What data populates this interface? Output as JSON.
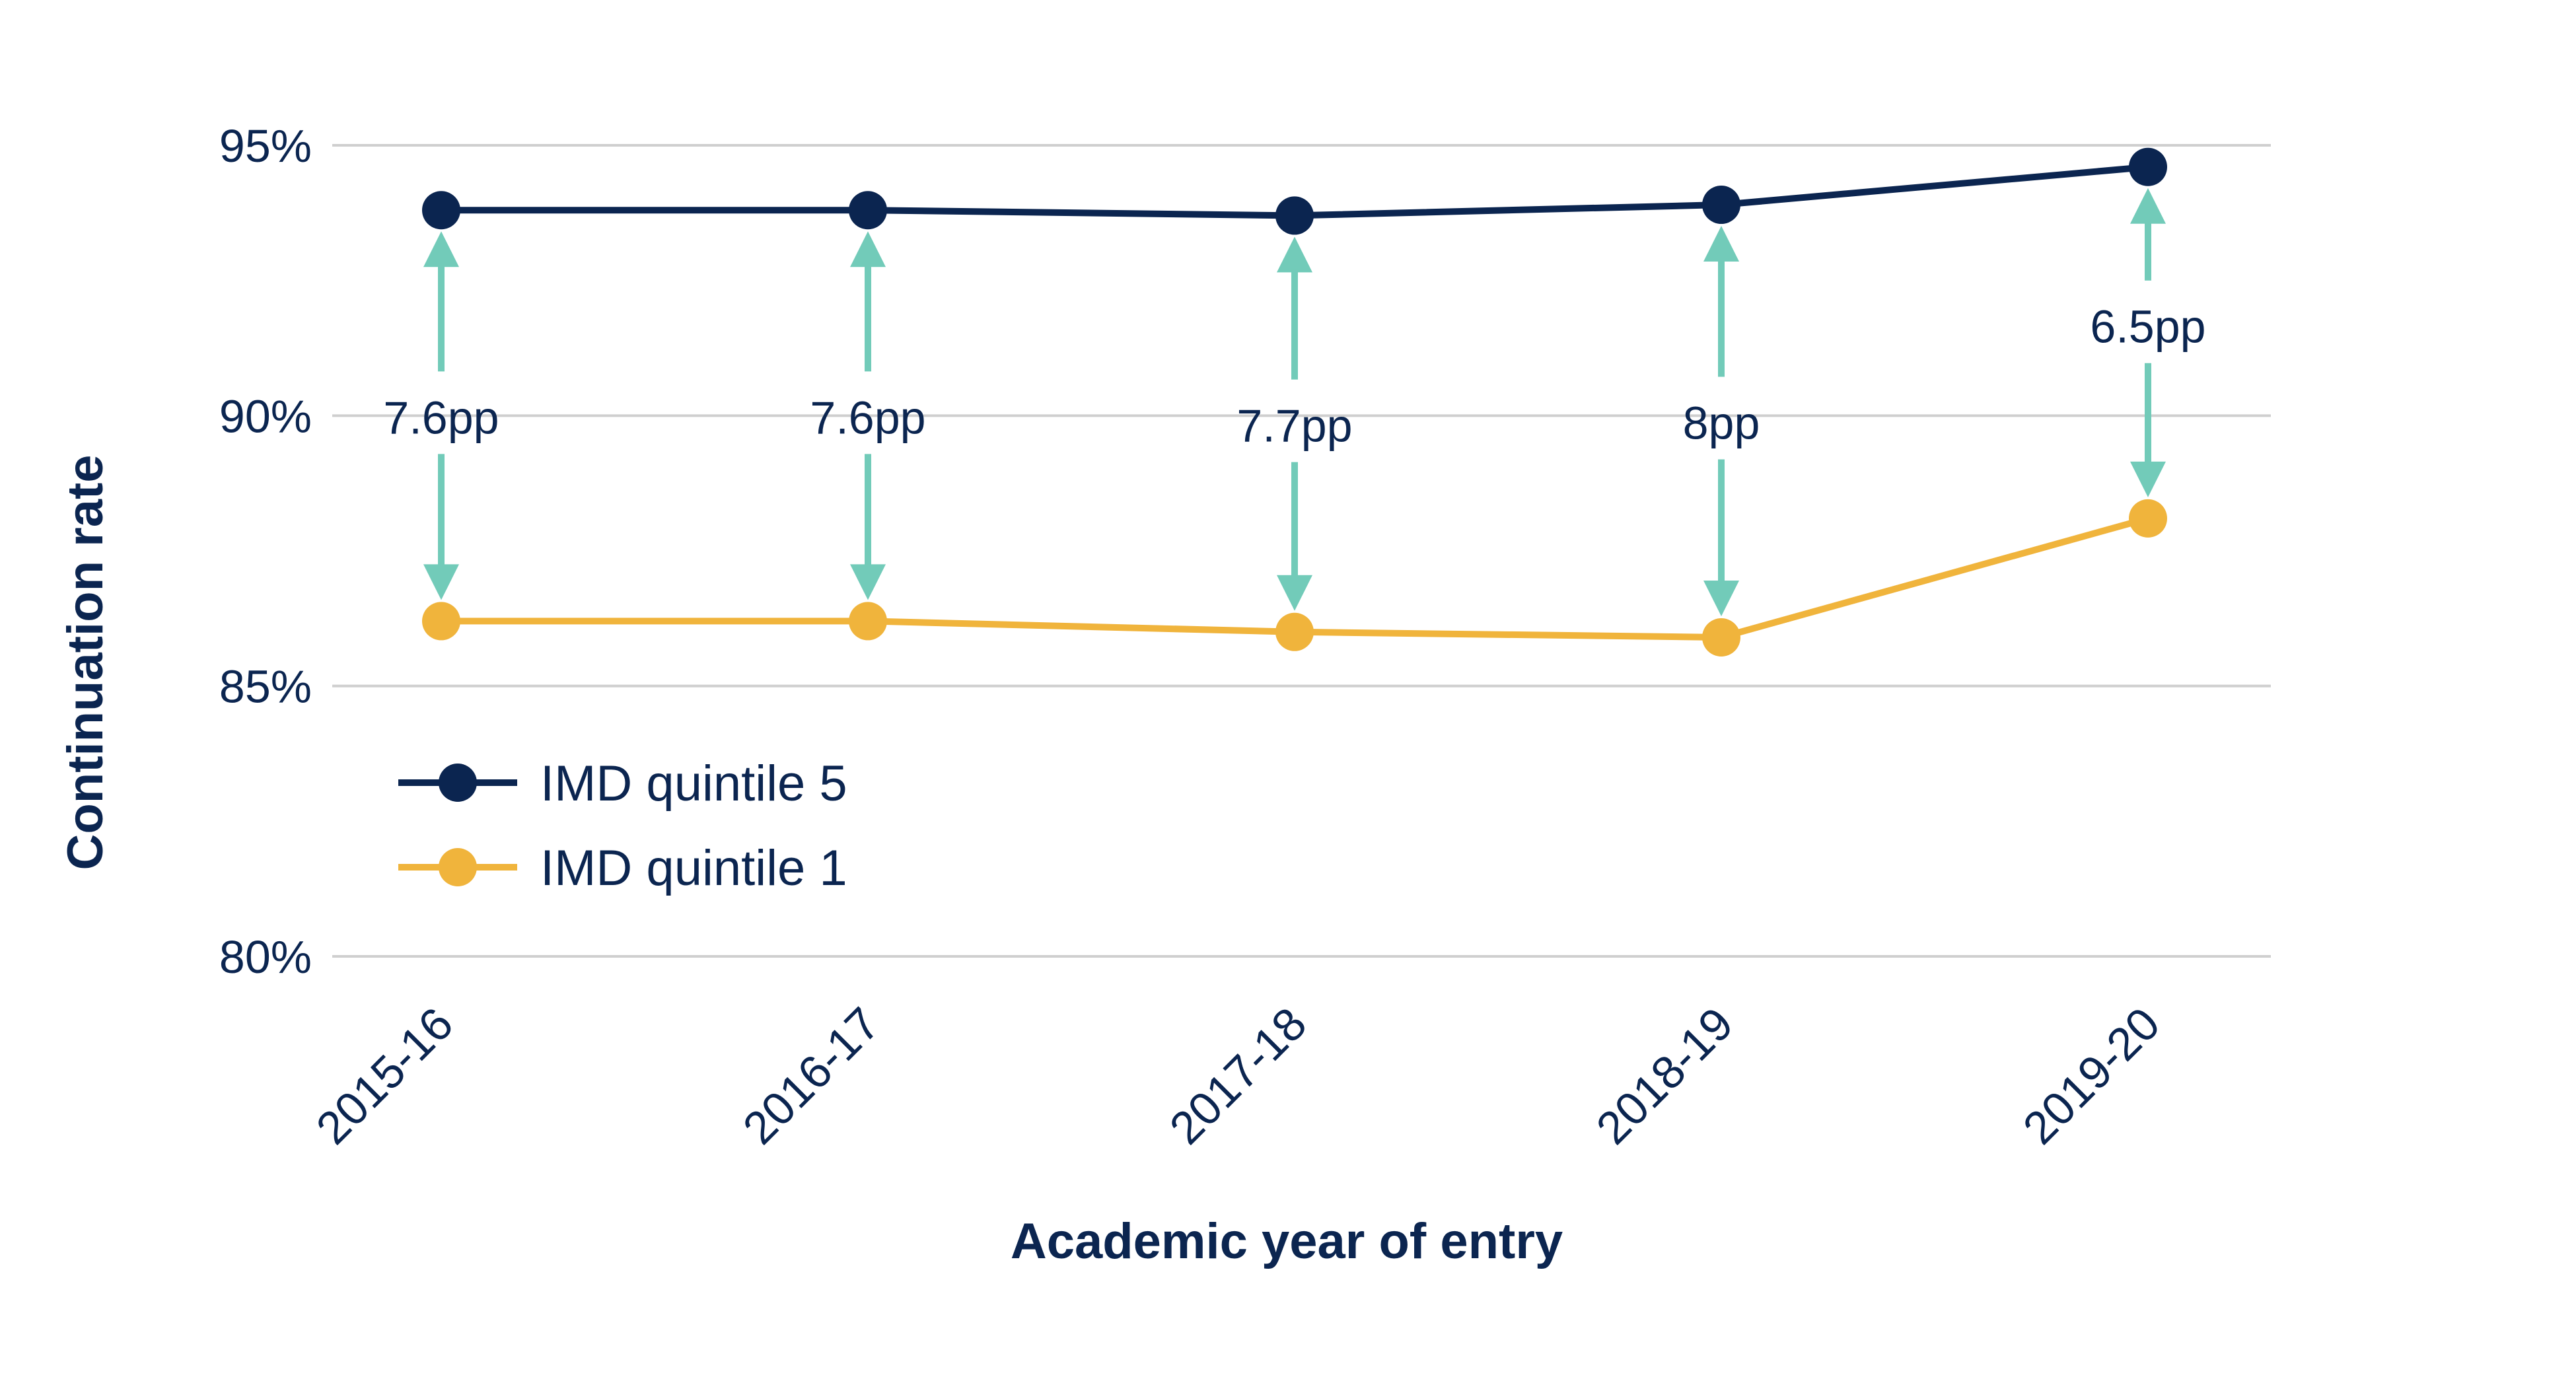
{
  "chart_data": {
    "type": "line",
    "xlabel": "Academic year of entry",
    "ylabel": "Continuation rate",
    "categories": [
      "2015-16",
      "2016-17",
      "2017-18",
      "2018-19",
      "2019-20"
    ],
    "ylim": [
      80,
      95
    ],
    "yticks": [
      80,
      85,
      90,
      95
    ],
    "ytick_labels": [
      "80%",
      "85%",
      "90%",
      "95%"
    ],
    "grid": "horizontal",
    "legend_position": "bottom-left",
    "series": [
      {
        "name": "IMD quintile 5",
        "color": "#0b2550",
        "values": [
          93.8,
          93.8,
          93.7,
          93.9,
          94.6
        ]
      },
      {
        "name": "IMD quintile 1",
        "color": "#f0b43c",
        "values": [
          86.2,
          86.2,
          86.0,
          85.9,
          88.1
        ]
      }
    ],
    "gap_annotations": {
      "color": "#72cbb9",
      "labels": [
        "7.6pp",
        "7.6pp",
        "7.7pp",
        "8pp",
        "6.5pp"
      ]
    }
  }
}
